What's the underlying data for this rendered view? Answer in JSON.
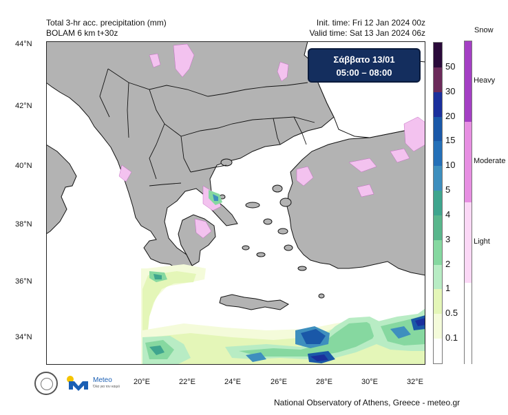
{
  "header": {
    "title": "Total 3-hr acc. precipitation (mm)",
    "model": "BOLAM 6 km t+30z",
    "init_time": "Init. time: Fri 12 Jan 2024 00z",
    "valid_time": "Valid time: Sat 13 Jan 2024 06z"
  },
  "date_box": {
    "day": "Σάββατο 13/01",
    "hours": "05:00 – 08:00"
  },
  "lat_labels": [
    "44°N",
    "42°N",
    "40°N",
    "38°N",
    "36°N",
    "34°N"
  ],
  "lon_labels": [
    "20°E",
    "22°E",
    "24°E",
    "26°E",
    "28°E",
    "30°E",
    "32°E"
  ],
  "precip_legend": {
    "levels": [
      "50",
      "30",
      "20",
      "15",
      "10",
      "5",
      "4",
      "3",
      "2",
      "1",
      "0.5",
      "0.1"
    ],
    "colors": [
      "#2a0a3a",
      "#6b2a5a",
      "#1a2f9c",
      "#1a58a8",
      "#2470b8",
      "#3e8fbe",
      "#3fa58e",
      "#59b68c",
      "#86d8a0",
      "#b8ecc4",
      "#e4f6b8",
      "#f4fbda",
      "#ffffff"
    ]
  },
  "snow_legend": {
    "title": "Snow",
    "levels": [
      "Heavy",
      "Moderate",
      "Light"
    ],
    "colors": [
      "#a43fc4",
      "#e78fe2",
      "#fbd8f6",
      "#ffffff"
    ]
  },
  "footer": "National Observatory of Athens, Greece - meteo.gr",
  "logos": {
    "meteo_name": "Meteo",
    "meteo_sub": "Όλα για τον καιρό"
  }
}
